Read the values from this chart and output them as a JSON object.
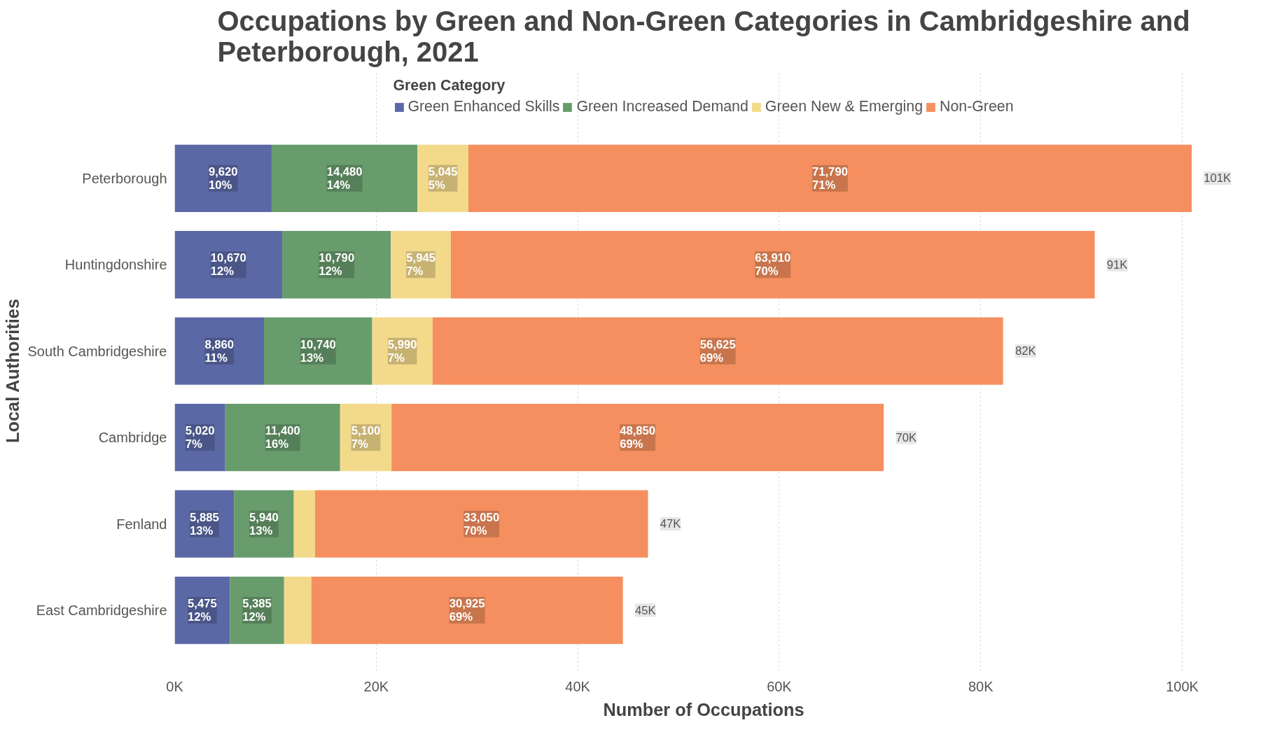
{
  "chart_data": {
    "type": "bar",
    "orientation": "horizontal",
    "stacked": true,
    "title": "Occupations by Green and Non-Green Categories in Cambridgeshire and Peterborough, 2021",
    "xlabel": "Number of Occupations",
    "ylabel": "Local Authorities",
    "legend_title": "Green Category",
    "categories": [
      "Peterborough",
      "Huntingdonshire",
      "South Cambridgeshire",
      "Cambridge",
      "Fenland",
      "East Cambridgeshire"
    ],
    "series": [
      {
        "name": "Green Enhanced Skills",
        "color": "#5b68a6",
        "values": [
          9620,
          10670,
          8860,
          5020,
          5885,
          5475
        ],
        "value_labels": [
          "9,620\n10%",
          "10,670\n12%",
          "8,860\n11%",
          "5,020\n7%",
          "5,885\n13%",
          "5,475\n12%"
        ]
      },
      {
        "name": "Green Increased Demand",
        "color": "#689c6c",
        "values": [
          14480,
          10790,
          10740,
          11400,
          5940,
          5385
        ],
        "value_labels": [
          "14,480\n14%",
          "10,790\n12%",
          "10,740\n13%",
          "11,400\n16%",
          "5,940\n13%",
          "5,385\n12%"
        ]
      },
      {
        "name": "Green New & Emerging",
        "color": "#f3da8b",
        "values": [
          5045,
          5945,
          5990,
          5100,
          2100,
          2700
        ],
        "value_labels": [
          "5,045\n5%",
          "5,945\n7%",
          "5,990\n7%",
          "5,100\n7%",
          null,
          null
        ]
      },
      {
        "name": "Non-Green",
        "color": "#f58f5f",
        "values": [
          71790,
          63910,
          56625,
          48850,
          33050,
          30925
        ],
        "value_labels": [
          "71,790\n71%",
          "63,910\n70%",
          "56,625\n69%",
          "48,850\n69%",
          "33,050\n70%",
          "30,925\n69%"
        ]
      }
    ],
    "totals": [
      "101K",
      "91K",
      "82K",
      "70K",
      "47K",
      "45K"
    ],
    "xlim": [
      0,
      105000
    ],
    "xticks": [
      {
        "value": 0,
        "label": "0K"
      },
      {
        "value": 20000,
        "label": "20K"
      },
      {
        "value": 40000,
        "label": "40K"
      },
      {
        "value": 60000,
        "label": "60K"
      },
      {
        "value": 80000,
        "label": "80K"
      },
      {
        "value": 100000,
        "label": "100K"
      }
    ],
    "grid": "x",
    "legend": "top"
  }
}
